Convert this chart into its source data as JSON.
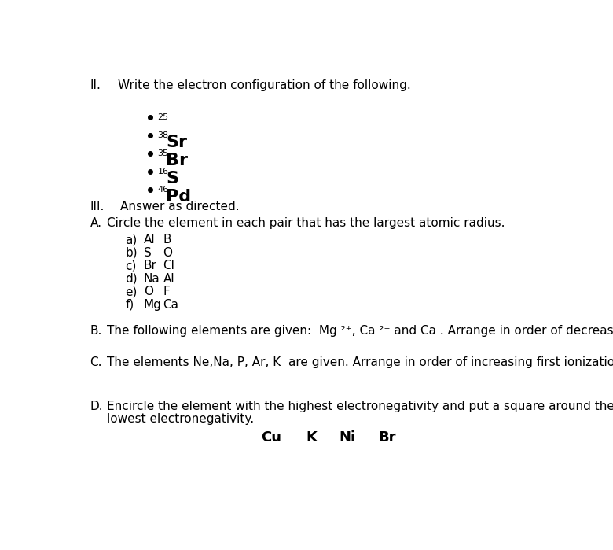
{
  "bg_color": "#ffffff",
  "section_II_header": "II.",
  "section_II_text": "Write the electron configuration of the following.",
  "bullet_items": [
    {
      "prefix": "25",
      "symbol": ""
    },
    {
      "prefix": "38",
      "symbol": "Sr"
    },
    {
      "prefix": "35",
      "symbol": "Br"
    },
    {
      "prefix": "16",
      "symbol": "S"
    },
    {
      "prefix": "46",
      "symbol": "Pd"
    }
  ],
  "section_III_header": "III.",
  "section_III_text": "Answer as directed.",
  "sectionA_header": "A.",
  "sectionA_text": "Circle the element in each pair that has the largest atomic radius.",
  "pairs": [
    [
      "a)  Al    B"
    ],
    [
      "b)  S      O"
    ],
    [
      "c)  Br    Cl"
    ],
    [
      "d)  Na   Al"
    ],
    [
      "e)  O     F"
    ],
    [
      "f)   Mg   Ca"
    ]
  ],
  "sectionB_header": "B.",
  "sectionB_text": "The following elements are given:  Mg ²⁺, Ca ²⁺ and Ca . Arrange in order of decreasing radius.",
  "sectionC_header": "C.",
  "sectionC_text": "The elements Ne,Na, P, Ar, K  are given. Arrange in order of increasing first ionization energy.",
  "sectionD_header": "D.",
  "sectionD_line1": "Encircle the element with the highest electronegativity and put a square around the element with the",
  "sectionD_line2": "lowest electronegativity.",
  "sectionD_elements": [
    "Cu",
    "K",
    "Ni",
    "Br"
  ],
  "text_color": "#000000"
}
